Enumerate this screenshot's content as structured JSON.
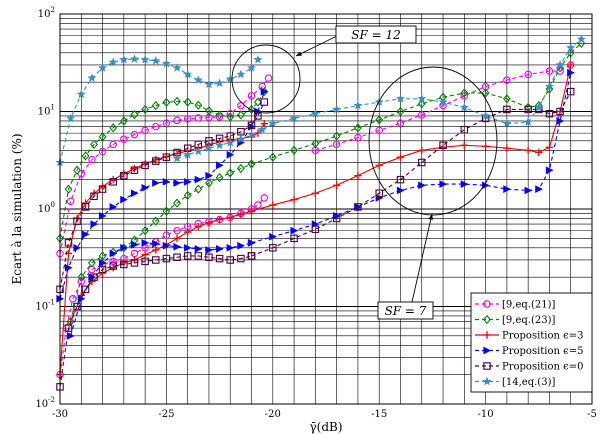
{
  "chart_data": {
    "type": "line",
    "xlabel": "γ̄(dB)",
    "ylabel": "Ecart à la simulation (%)",
    "xlim": [
      -30,
      -5
    ],
    "ylim": [
      0.01,
      100
    ],
    "yscale": "log",
    "grid": true,
    "legend_position": "bottom-right",
    "x_ticks": [
      "-30",
      "-25",
      "-20",
      "-15",
      "-10",
      "-5"
    ],
    "y_ticks": [
      {
        "base": "10",
        "exp": "-2",
        "value": 0.01
      },
      {
        "base": "10",
        "exp": "-1",
        "value": 0.1
      },
      {
        "base": "10",
        "exp": "0",
        "value": 1
      },
      {
        "base": "10",
        "exp": "1",
        "value": 10
      },
      {
        "base": "10",
        "exp": "2",
        "value": 100
      }
    ],
    "annotations": [
      {
        "text": "SF = 12"
      },
      {
        "text": "SF = 7"
      }
    ],
    "series": [
      {
        "name": "[9,eq.(21)]",
        "color": "#ff00ff",
        "marker": "circle",
        "segments": [
          {
            "x": [
              -30,
              -29.7,
              -29.4,
              -29,
              -28.5,
              -28,
              -27.5,
              -27,
              -26.5,
              -26,
              -25.5,
              -25,
              -24.5,
              -24,
              -23.5,
              -23,
              -22.5,
              -22,
              -21.5,
              -21,
              -20.7,
              -20.4
            ],
            "y": [
              0.02,
              0.06,
              0.12,
              0.18,
              0.24,
              0.27,
              0.29,
              0.31,
              0.35,
              0.4,
              0.46,
              0.54,
              0.6,
              0.66,
              0.71,
              0.74,
              0.78,
              0.82,
              0.9,
              1.0,
              1.1,
              1.3
            ]
          },
          {
            "x": [
              -30,
              -29.5,
              -29,
              -28.5,
              -28,
              -27.5,
              -27,
              -26.5,
              -26,
              -25.5,
              -25,
              -24.5,
              -24,
              -23.5,
              -23,
              -22.5,
              -22,
              -21.5,
              -21,
              -20.5,
              -20.2
            ],
            "y": [
              0.35,
              1.2,
              2.3,
              3.2,
              3.9,
              4.6,
              5.2,
              5.8,
              6.4,
              7.0,
              7.6,
              8.1,
              8.4,
              8.6,
              8.7,
              8.8,
              9.5,
              11.5,
              14.5,
              18,
              22
            ]
          },
          {
            "x": [
              -18,
              -17,
              -16,
              -15,
              -14,
              -13,
              -12,
              -11,
              -10,
              -9,
              -8,
              -7,
              -6.5,
              -6
            ],
            "y": [
              4.0,
              4.6,
              5.4,
              6.4,
              7.6,
              9.2,
              11.5,
              14.5,
              18,
              21,
              24,
              26,
              26,
              30
            ]
          }
        ]
      },
      {
        "name": "[9,eq.(23)]",
        "color": "#008000",
        "marker": "diamond",
        "segments": [
          {
            "x": [
              -30,
              -29.6,
              -29.2,
              -28.8,
              -28.4,
              -28,
              -27.5,
              -27,
              -26.5,
              -26,
              -25.5,
              -25,
              -24.5,
              -24,
              -23.5,
              -23,
              -22.5,
              -22,
              -21.5,
              -21,
              -20.7,
              -20.4
            ],
            "y": [
              0.5,
              1.6,
              2.5,
              3.5,
              4.6,
              5.5,
              6.8,
              8.0,
              9.3,
              10.5,
              11.5,
              12.4,
              12.7,
              12.5,
              11.6,
              10.2,
              9.2,
              8.8,
              9.2,
              10.5,
              12.5,
              16
            ]
          },
          {
            "x": [
              -29.5,
              -29,
              -28.5,
              -28,
              -27.5,
              -27,
              -26.5,
              -26,
              -25.5,
              -25,
              -24.5,
              -24,
              -23.5,
              -23,
              -22.5,
              -22,
              -21.5,
              -21
            ],
            "y": [
              0.07,
              0.2,
              0.28,
              0.33,
              0.36,
              0.4,
              0.48,
              0.6,
              0.75,
              0.95,
              1.15,
              1.38,
              1.6,
              1.85,
              2.1,
              2.35,
              2.6,
              2.9
            ]
          },
          {
            "x": [
              -21,
              -20,
              -19,
              -18,
              -17,
              -16,
              -15,
              -14,
              -13,
              -12,
              -11,
              -10,
              -9,
              -8,
              -7.5,
              -7,
              -6.5,
              -6,
              -5.5
            ],
            "y": [
              2.9,
              3.4,
              4.0,
              4.7,
              5.6,
              6.8,
              8.2,
              10.0,
              12.0,
              14.0,
              15.5,
              15.5,
              13.5,
              11.0,
              11.5,
              17.0,
              28,
              40,
              50
            ]
          }
        ]
      },
      {
        "name": "Proposition ϵ=3",
        "color": "#ff0000",
        "marker": "plus",
        "segments": [
          {
            "x": [
              -30,
              -29.6,
              -29.2,
              -28.8,
              -28.4,
              -28,
              -27.5,
              -27,
              -26.5,
              -26,
              -25.5,
              -25,
              -24.5,
              -24,
              -23.5,
              -23,
              -22.5,
              -22,
              -21.5,
              -21,
              -20.7,
              -20.4
            ],
            "y": [
              0.02,
              0.35,
              0.8,
              1.15,
              1.45,
              1.7,
              2.0,
              2.3,
              2.6,
              2.9,
              3.2,
              3.45,
              3.7,
              3.95,
              4.2,
              4.5,
              4.9,
              5.1,
              5.3,
              5.5,
              6.0,
              7.5
            ]
          },
          {
            "x": [
              -29.5,
              -29,
              -28.5,
              -28,
              -27.5,
              -27,
              -26.5,
              -26,
              -25.5,
              -25,
              -24.5,
              -24,
              -23.5,
              -23,
              -22.5,
              -22,
              -21.5,
              -21
            ],
            "y": [
              0.07,
              0.13,
              0.18,
              0.22,
              0.25,
              0.28,
              0.3,
              0.34,
              0.38,
              0.43,
              0.5,
              0.58,
              0.66,
              0.72,
              0.78,
              0.82,
              0.88,
              0.95
            ]
          },
          {
            "x": [
              -21,
              -20,
              -19,
              -18,
              -17,
              -16,
              -15,
              -14,
              -13,
              -12,
              -11,
              -10,
              -9,
              -8,
              -7.5,
              -7,
              -6.5,
              -6
            ],
            "y": [
              0.95,
              1.1,
              1.25,
              1.45,
              1.75,
              2.2,
              2.8,
              3.4,
              4.0,
              4.3,
              4.5,
              4.4,
              4.2,
              4.0,
              3.8,
              4.3,
              10,
              30
            ]
          }
        ]
      },
      {
        "name": "Proposition ϵ=5",
        "color": "#0000ff",
        "marker": "triangle",
        "segments": [
          {
            "x": [
              -30,
              -29.6,
              -29.2,
              -28.8,
              -28.4,
              -28,
              -27.5,
              -27,
              -26.5,
              -26,
              -25.5,
              -25,
              -24.5,
              -24,
              -23.5,
              -23,
              -22.5,
              -22,
              -21.5,
              -21,
              -20.7,
              -20.4
            ],
            "y": [
              0.12,
              0.25,
              0.4,
              0.55,
              0.7,
              0.85,
              1.05,
              1.25,
              1.45,
              1.65,
              1.85,
              1.9,
              1.85,
              1.9,
              2.0,
              2.2,
              2.8,
              3.6,
              4.8,
              7.0,
              10,
              16
            ]
          },
          {
            "x": [
              -29.5,
              -29,
              -28.5,
              -28,
              -27.5,
              -27,
              -26.5,
              -26,
              -25.5,
              -25,
              -24.5,
              -24,
              -23.5,
              -23,
              -22.5,
              -22,
              -21.5,
              -21
            ],
            "y": [
              0.05,
              0.12,
              0.2,
              0.28,
              0.35,
              0.4,
              0.43,
              0.45,
              0.44,
              0.42,
              0.41,
              0.4,
              0.39,
              0.38,
              0.39,
              0.4,
              0.42,
              0.45
            ]
          },
          {
            "x": [
              -21,
              -20,
              -19,
              -18,
              -17,
              -16,
              -15,
              -14,
              -13,
              -12,
              -11,
              -10,
              -9,
              -8,
              -7.5,
              -7,
              -6.5,
              -6
            ],
            "y": [
              0.45,
              0.52,
              0.6,
              0.7,
              0.85,
              1.05,
              1.3,
              1.55,
              1.75,
              1.8,
              1.8,
              1.75,
              1.6,
              1.55,
              1.6,
              2.5,
              8,
              25
            ]
          }
        ]
      },
      {
        "name": "Proposition ϵ=0",
        "color": "#4b0040",
        "marker": "square",
        "segments": [
          {
            "x": [
              -30,
              -29.6,
              -29.2,
              -28.8,
              -28.4,
              -28,
              -27.5,
              -27,
              -26.5,
              -26,
              -25.5,
              -25,
              -24.5,
              -24,
              -23.5,
              -23,
              -22.5,
              -22,
              -21.5,
              -21,
              -20.7,
              -20.4
            ],
            "y": [
              0.15,
              0.45,
              0.75,
              1.05,
              1.35,
              1.6,
              1.9,
              2.2,
              2.5,
              2.8,
              3.1,
              3.4,
              3.8,
              4.2,
              4.6,
              5.0,
              5.3,
              5.6,
              6.2,
              7.2,
              9,
              12.5
            ]
          },
          {
            "x": [
              -30,
              -29.6,
              -29.2,
              -28.8,
              -28.4,
              -28,
              -27.5,
              -27,
              -26.5,
              -26,
              -25.5,
              -25,
              -24.5,
              -24,
              -23.5,
              -23,
              -22.5,
              -22,
              -21.5,
              -21
            ],
            "y": [
              0.015,
              0.06,
              0.1,
              0.15,
              0.2,
              0.24,
              0.26,
              0.27,
              0.28,
              0.29,
              0.3,
              0.31,
              0.32,
              0.33,
              0.33,
              0.32,
              0.31,
              0.3,
              0.31,
              0.33
            ]
          },
          {
            "x": [
              -21,
              -20,
              -19,
              -18,
              -17,
              -16,
              -15,
              -14,
              -13,
              -12,
              -11,
              -10,
              -9,
              -8,
              -7.5,
              -7,
              -6.5,
              -6
            ],
            "y": [
              0.33,
              0.4,
              0.5,
              0.62,
              0.8,
              1.05,
              1.45,
              2.0,
              3.0,
              4.5,
              6.5,
              8.5,
              10.5,
              10.5,
              10.5,
              9.5,
              10,
              16
            ]
          }
        ]
      },
      {
        "name": "[14,eq.(3)]",
        "color": "#3b8ec4",
        "marker": "star",
        "segments": [
          {
            "x": [
              -30,
              -29.5,
              -29,
              -28.5,
              -28,
              -27.5,
              -27,
              -26.5,
              -26,
              -25.5,
              -25,
              -24.5,
              -24,
              -23.5,
              -23,
              -22.5,
              -22,
              -21.5,
              -21,
              -20.7
            ],
            "y": [
              3.0,
              8.5,
              15,
              22,
              28,
              32,
              34,
              34.5,
              34,
              33,
              31,
              28,
              24,
              21,
              19,
              19.5,
              21.5,
              24,
              28,
              34
            ]
          },
          {
            "x": [
              -24.5,
              -24,
              -23.5,
              -23,
              -22.5,
              -22,
              -21.5,
              -21,
              -20.5,
              -20,
              -19,
              -18,
              -17,
              -16,
              -15,
              -14,
              -13,
              -12,
              -11,
              -10,
              -9,
              -8,
              -7.5,
              -7,
              -6.5,
              -6,
              -5.5
            ],
            "y": [
              3.3,
              3.6,
              3.9,
              4.2,
              4.5,
              4.8,
              5.2,
              5.8,
              6.5,
              7.5,
              8.5,
              9.5,
              10.5,
              11.5,
              12.5,
              13.5,
              13.5,
              12.5,
              11.0,
              9.0,
              7.5,
              7.8,
              11,
              18,
              30,
              45,
              55
            ]
          }
        ]
      }
    ]
  }
}
